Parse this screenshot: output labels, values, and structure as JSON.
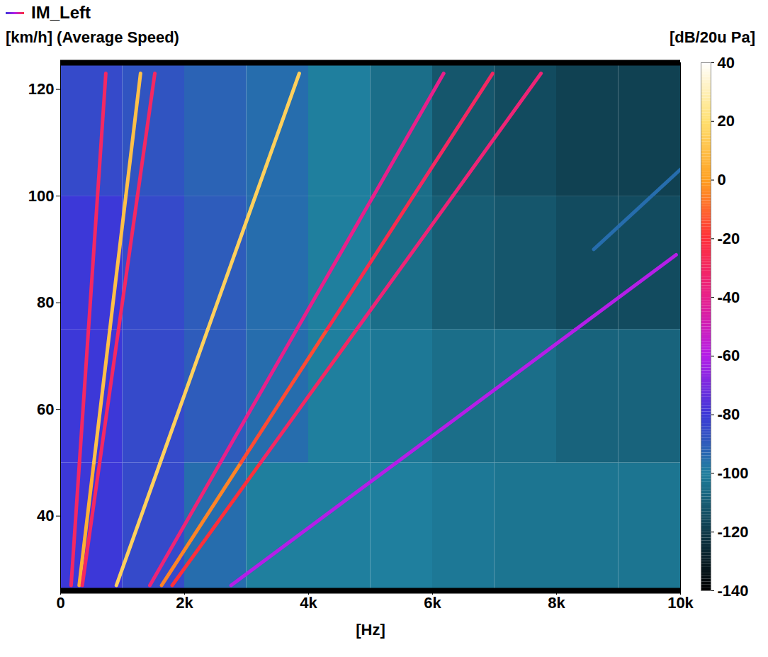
{
  "chart_data": {
    "type": "heatmap",
    "title": "IM_Left",
    "x_label": "[Hz]",
    "y_label": "[km/h] (Average Speed)",
    "colorbar_label": "[dB/20u Pa]",
    "xlim": [
      0,
      10000
    ],
    "xticks": [
      0,
      {
        "value": 2000,
        "label": "2k"
      },
      {
        "value": 4000,
        "label": "4k"
      },
      {
        "value": 6000,
        "label": "6k"
      },
      {
        "value": 8000,
        "label": "8k"
      },
      {
        "value": 10000,
        "label": "10k"
      }
    ],
    "ylim": [
      26,
      125
    ],
    "yticks": [
      40,
      60,
      80,
      100,
      120
    ],
    "colorbar": {
      "range": [
        -140,
        40
      ],
      "ticks": [
        -140,
        -120,
        -100,
        -80,
        -60,
        -40,
        -20,
        0,
        20,
        40
      ]
    },
    "cells": {
      "x_edges": [
        0,
        1000,
        2000,
        3000,
        4000,
        5000,
        6000,
        7000,
        8000,
        9000,
        10000
      ],
      "y_edges": [
        26,
        50,
        75,
        100,
        125
      ],
      "values": [
        [
          -80,
          -85,
          -95,
          -100,
          -100,
          -100,
          -102,
          -103,
          -103,
          -103
        ],
        [
          -80,
          -85,
          -90,
          -95,
          -100,
          -102,
          -105,
          -105,
          -108,
          -108
        ],
        [
          -80,
          -85,
          -90,
          -95,
          -100,
          -105,
          -110,
          -112,
          -115,
          -115
        ],
        [
          -85,
          -88,
          -92,
          -95,
          -100,
          -105,
          -112,
          -115,
          -118,
          -118
        ]
      ]
    },
    "tracks": [
      {
        "x": [
          170,
          304,
          450,
          596,
          730
        ],
        "y": [
          27,
          50,
          75,
          100,
          123
        ],
        "values": [
          -30,
          -30,
          -30,
          -30,
          -30
        ]
      },
      {
        "x": [
          300,
          537,
          795,
          1053,
          1290
        ],
        "y": [
          27,
          50,
          75,
          100,
          123
        ],
        "values": [
          5,
          10,
          10,
          10,
          10
        ]
      },
      {
        "x": [
          350,
          630,
          935,
          1240,
          1520
        ],
        "y": [
          27,
          50,
          75,
          100,
          123
        ],
        "values": [
          -30,
          -30,
          -30,
          -30,
          -30
        ]
      },
      {
        "x": [
          900,
          1607,
          2375,
          3143,
          3850
        ],
        "y": [
          27,
          50,
          75,
          100,
          123
        ],
        "values": [
          15,
          15,
          15,
          15,
          15
        ]
      },
      {
        "x": [
          1440,
          2576,
          3810,
          5045,
          6180
        ],
        "y": [
          27,
          50,
          75,
          100,
          123
        ],
        "values": [
          -35,
          -40,
          -40,
          -40,
          -40
        ]
      },
      {
        "x": [
          1630,
          2909,
          4300,
          5690,
          6970
        ],
        "y": [
          27,
          50,
          75,
          100,
          123
        ],
        "values": [
          -5,
          -15,
          -25,
          -30,
          -30
        ]
      },
      {
        "x": [
          1800,
          3226,
          4776,
          6326,
          7750
        ],
        "y": [
          27,
          50,
          75,
          100,
          123
        ],
        "values": [
          -20,
          -30,
          -35,
          -35,
          -35
        ]
      },
      {
        "x": [
          2750,
          5414,
          8310,
          9930
        ],
        "y": [
          27,
          50,
          75,
          89
        ],
        "values": [
          -60,
          -60,
          -60,
          -65
        ]
      },
      {
        "x": [
          8600,
          10000
        ],
        "y": [
          90,
          105
        ],
        "values": [
          -95,
          -95
        ]
      }
    ]
  }
}
